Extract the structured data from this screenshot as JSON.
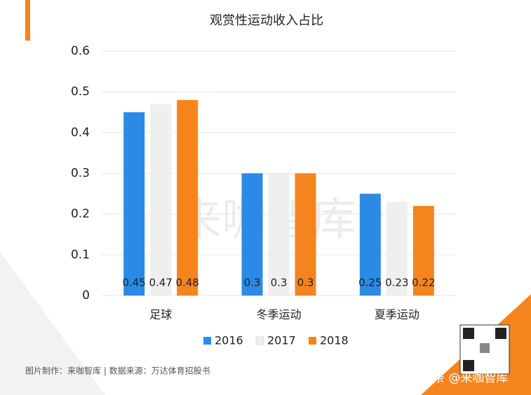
{
  "chart_data": {
    "type": "bar",
    "title": "观赏性运动收入占比",
    "categories": [
      "足球",
      "冬季运动",
      "夏季运动"
    ],
    "series": [
      {
        "name": "2016",
        "color": "#2b8ae6",
        "values": [
          0.45,
          0.3,
          0.25
        ]
      },
      {
        "name": "2017",
        "color": "#efefef",
        "values": [
          0.47,
          0.3,
          0.23
        ]
      },
      {
        "name": "2018",
        "color": "#f5841f",
        "values": [
          0.48,
          0.3,
          0.22
        ]
      }
    ],
    "ylim": [
      0,
      0.6
    ],
    "yticks": [
      0,
      0.1,
      0.2,
      0.3,
      0.4,
      0.5,
      0.6
    ],
    "grid": true,
    "legend": "bottom",
    "watermark": "来咖智库",
    "source_note": "图片制作：来咖智库 | 数据来源：万达体育招股书",
    "credit": "头条 @来咖智库"
  }
}
